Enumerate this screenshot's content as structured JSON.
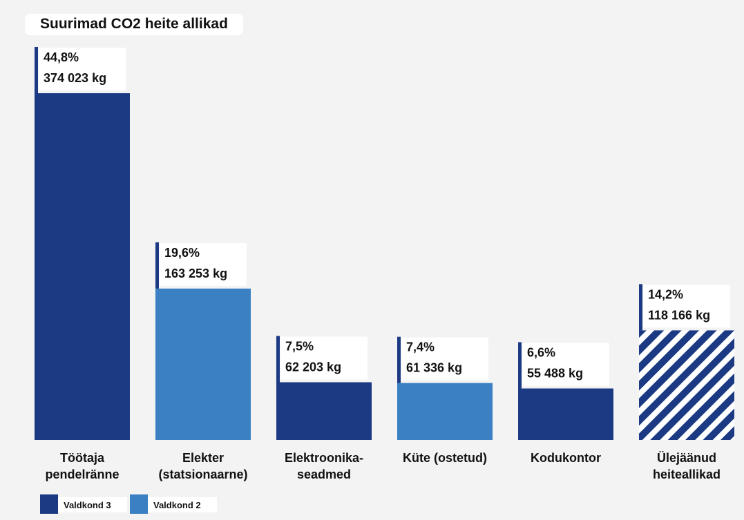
{
  "chart_data": {
    "type": "bar",
    "title": "Suurimad CO2 heite allikad",
    "categories": [
      "Töötaja pendelränne",
      "Elekter (statsionaarne)",
      "Elektroonika-seadmed",
      "Küte (ostetud)",
      "Kodukontor",
      "Ülejäänud heiteallikad"
    ],
    "values": [
      374023,
      163253,
      62203,
      61336,
      55488,
      118166
    ],
    "value_labels": [
      "374 023 kg",
      "163 253 kg",
      "62 203 kg",
      "61 336 kg",
      "55 488 kg",
      "118 166 kg"
    ],
    "percents": [
      44.8,
      19.6,
      7.5,
      7.4,
      6.6,
      14.2
    ],
    "percent_labels": [
      "44,8%",
      "19,6%",
      "7,5%",
      "7,4%",
      "6,6%",
      "14,2%"
    ],
    "colors": [
      "#1b3a83",
      "#3a80c2",
      "#1b3a83",
      "#3a80c2",
      "#1b3a83",
      "#1b3a83"
    ],
    "hatched": [
      false,
      false,
      false,
      false,
      false,
      true
    ],
    "legend": [
      {
        "name": "Valdkond 3",
        "color": "#1b3a83"
      },
      {
        "name": "Valdkond 2",
        "color": "#3a80c2"
      }
    ]
  }
}
